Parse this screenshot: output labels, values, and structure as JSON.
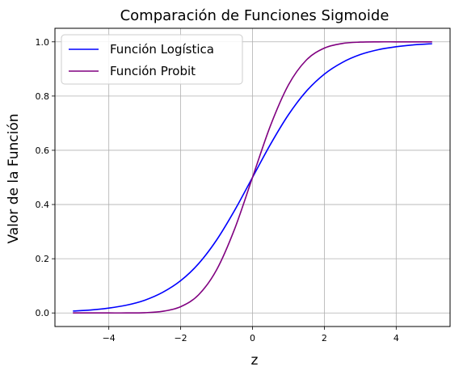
{
  "chart_data": {
    "type": "line",
    "title": "Comparación de Funciones Sigmoide",
    "xlabel": "z",
    "ylabel": "Valor de la Función",
    "xlim": [
      -5.5,
      5.5
    ],
    "ylim": [
      -0.05,
      1.05
    ],
    "x_ticks": [
      -4,
      -2,
      0,
      2,
      4
    ],
    "x_tick_labels": [
      "−4",
      "−2",
      "0",
      "2",
      "4"
    ],
    "y_ticks": [
      0.0,
      0.2,
      0.4,
      0.6,
      0.8,
      1.0
    ],
    "y_tick_labels": [
      "0.0",
      "0.2",
      "0.4",
      "0.6",
      "0.8",
      "1.0"
    ],
    "grid": true,
    "legend_position": "top-left",
    "series": [
      {
        "name": "Función Logística",
        "color": "#0000ff",
        "x": [
          -5,
          -4.5,
          -4,
          -3.5,
          -3,
          -2.5,
          -2,
          -1.5,
          -1,
          -0.5,
          0,
          0.5,
          1,
          1.5,
          2,
          2.5,
          3,
          3.5,
          4,
          4.5,
          5
        ],
        "y": [
          0.007,
          0.011,
          0.018,
          0.029,
          0.047,
          0.076,
          0.119,
          0.182,
          0.269,
          0.378,
          0.5,
          0.622,
          0.731,
          0.818,
          0.881,
          0.924,
          0.953,
          0.971,
          0.982,
          0.989,
          0.993
        ]
      },
      {
        "name": "Función Probit",
        "color": "#800080",
        "x": [
          -5,
          -4.5,
          -4,
          -3.5,
          -3,
          -2.5,
          -2,
          -1.5,
          -1,
          -0.5,
          0,
          0.5,
          1,
          1.5,
          2,
          2.5,
          3,
          3.5,
          4,
          4.5,
          5
        ],
        "y": [
          0.0,
          0.0,
          0.0,
          0.0,
          0.001,
          0.006,
          0.023,
          0.067,
          0.159,
          0.309,
          0.5,
          0.691,
          0.841,
          0.933,
          0.977,
          0.994,
          0.999,
          1.0,
          1.0,
          1.0,
          1.0
        ]
      }
    ]
  }
}
